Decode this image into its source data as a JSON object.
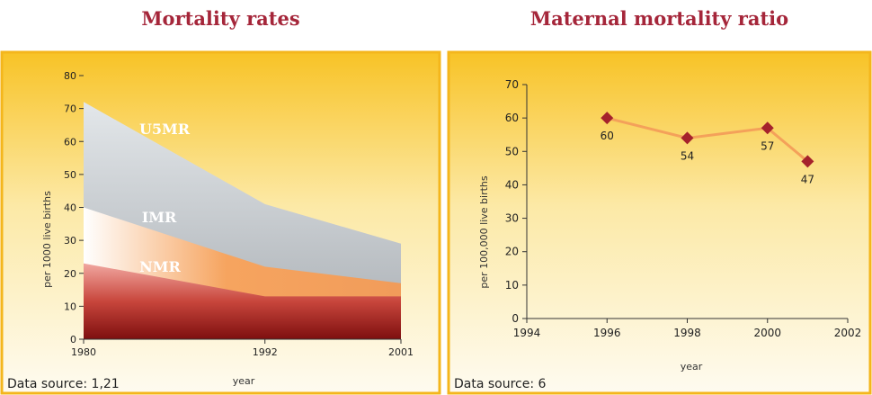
{
  "chart_data": [
    {
      "type": "area",
      "title": "Mortality rates",
      "xlabel": "year",
      "ylabel": "per 1000 live births",
      "x": [
        1980,
        1992,
        2001
      ],
      "xlim": [
        1980,
        2001
      ],
      "ylim": [
        0,
        80
      ],
      "xticks": [
        1980,
        1992,
        2001
      ],
      "yticks": [
        0,
        10,
        20,
        30,
        40,
        50,
        60,
        70,
        80
      ],
      "series": [
        {
          "name": "U5MR",
          "values": [
            72,
            41,
            29
          ],
          "color": "#c4c9cd"
        },
        {
          "name": "IMR",
          "values": [
            40,
            22,
            17
          ],
          "color": "#a3a8ad"
        },
        {
          "name": "NMR",
          "values": [
            23,
            13,
            13
          ],
          "color": "#f1a062"
        }
      ],
      "source": "Data source: 1,21"
    },
    {
      "type": "line",
      "title": "Maternal mortality ratio",
      "xlabel": "year",
      "ylabel": "per 100,000 live births",
      "xlim": [
        1994,
        2002
      ],
      "ylim": [
        0,
        70
      ],
      "xticks": [
        1994,
        1996,
        1998,
        2000,
        2002
      ],
      "yticks": [
        0,
        10,
        20,
        30,
        40,
        50,
        60,
        70
      ],
      "series": [
        {
          "x": [
            1996,
            1998,
            2000,
            2001
          ],
          "values": [
            60,
            54,
            57,
            47
          ],
          "line_color": "#f4a15a",
          "marker_color": "#a5222c"
        }
      ],
      "data_labels": [
        "60",
        "54",
        "57",
        "47"
      ],
      "source": "Data source: 6"
    }
  ]
}
